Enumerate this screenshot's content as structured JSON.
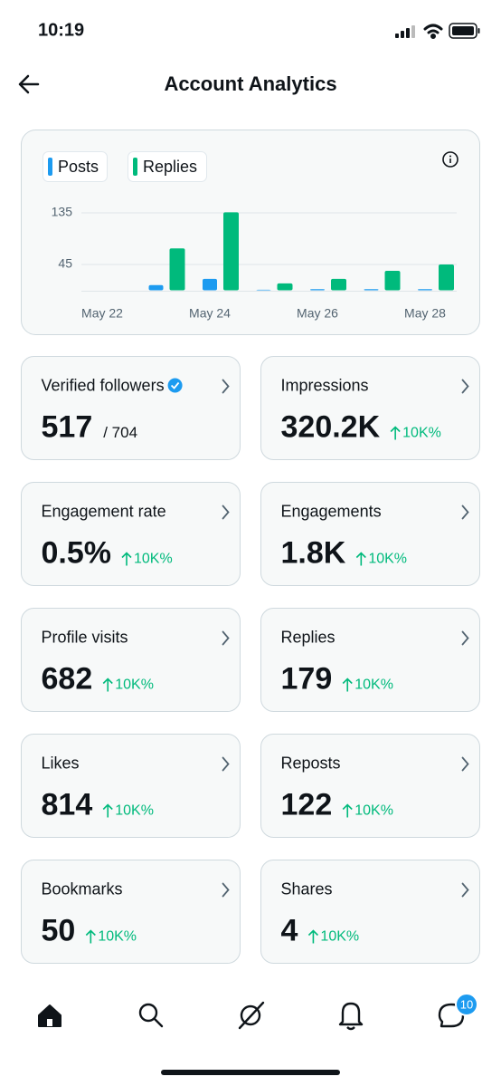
{
  "status_bar": {
    "time": "10:19"
  },
  "header": {
    "title": "Account Analytics"
  },
  "chart_data": {
    "type": "bar",
    "categories": [
      "May 22",
      null,
      "May 24",
      null,
      "May 26",
      null,
      "May 28"
    ],
    "series": [
      {
        "name": "Posts",
        "color": "#1d9bf0",
        "values": [
          0,
          9,
          20,
          1,
          2,
          2,
          2
        ]
      },
      {
        "name": "Replies",
        "color": "#00ba7c",
        "values": [
          0,
          73,
          136,
          12,
          20,
          34,
          45
        ]
      }
    ],
    "ylim": [
      0,
      150
    ],
    "yticks": [
      45,
      135
    ],
    "grid": true
  },
  "cards": [
    {
      "label": "Verified followers",
      "verified": true,
      "value": "517",
      "total": "/ 704"
    },
    {
      "label": "Impressions",
      "value": "320.2K",
      "change": "10K%"
    },
    {
      "label": "Engagement rate",
      "value": "0.5%",
      "change": "10K%"
    },
    {
      "label": "Engagements",
      "value": "1.8K",
      "change": "10K%"
    },
    {
      "label": "Profile visits",
      "value": "682",
      "change": "10K%"
    },
    {
      "label": "Replies",
      "value": "179",
      "change": "10K%"
    },
    {
      "label": "Likes",
      "value": "814",
      "change": "10K%"
    },
    {
      "label": "Reposts",
      "value": "122",
      "change": "10K%"
    },
    {
      "label": "Bookmarks",
      "value": "50",
      "change": "10K%"
    },
    {
      "label": "Shares",
      "value": "4",
      "change": "10K%"
    }
  ],
  "nav": {
    "messages_badge": "10"
  }
}
